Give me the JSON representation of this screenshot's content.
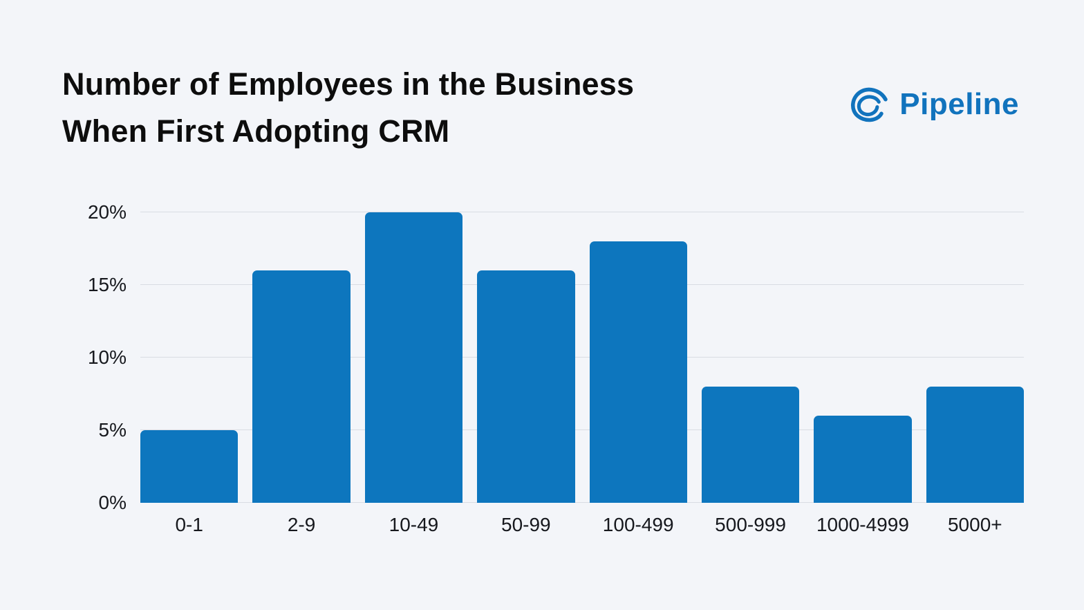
{
  "header": {
    "title_lines": [
      "Number of Employees in the Business",
      "When First Adopting CRM"
    ],
    "logo_text": "Pipeline"
  },
  "colors": {
    "bar": "#0d76be",
    "logo": "#1173bd",
    "background": "#f3f5f9",
    "gridline": "#d9dce3",
    "title_text": "#0d0d0d"
  },
  "icons": [
    {
      "name": "pipeline-swirl-logo-icon"
    }
  ],
  "chart_data": {
    "type": "bar",
    "title": "Number of Employees in the Business When First Adopting CRM",
    "categories": [
      "0-1",
      "2-9",
      "10-49",
      "50-99",
      "100-499",
      "500-999",
      "1000-4999",
      "5000+"
    ],
    "values": [
      5,
      16,
      20,
      16,
      18,
      8,
      6,
      8
    ],
    "xlabel": "",
    "ylabel": "",
    "ylim": [
      0,
      20
    ],
    "yticks": [
      0,
      5,
      10,
      15,
      20
    ],
    "ytick_suffix": "%",
    "grid": true,
    "legend": false
  }
}
